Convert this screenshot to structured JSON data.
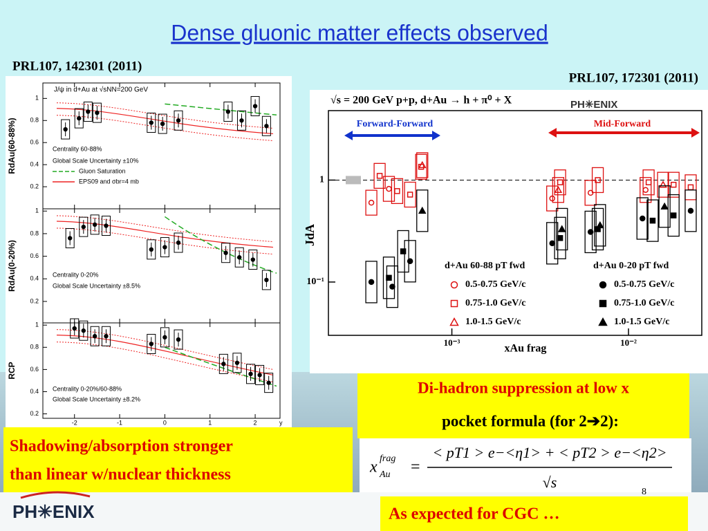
{
  "title": "Dense gluonic matter effects observed",
  "refs": [
    "PRL107, 142301 (2011)",
    "PRL107, 172301 (2011)"
  ],
  "left_figure": {
    "type": "scatter",
    "header": "J/ψ in d+Au at √sNN=200 GeV",
    "xlabel": "y",
    "xlim": [
      -2.7,
      2.55
    ],
    "xticks": [
      -2,
      -1,
      0,
      1,
      2
    ],
    "panels": [
      {
        "ylabel": "RdAu(60-88%)",
        "ylim": [
          0,
          1.14
        ],
        "yticks": [
          0.2,
          0.4,
          0.6,
          0.8,
          1
        ],
        "notes": [
          "Centrality 60-88%",
          "Global Scale Uncertainty ±10%"
        ],
        "legend": [
          {
            "name": "Gluon Saturation",
            "color": "#22aa22"
          },
          {
            "name": "EPS09 and σbr=4 mb",
            "color": "#ee2222"
          }
        ],
        "points": {
          "x": [
            -2.2,
            -1.9,
            -1.7,
            -1.5,
            -0.3,
            -0.05,
            0.3,
            1.4,
            1.7,
            2.0,
            2.25
          ],
          "y": [
            0.72,
            0.82,
            0.88,
            0.87,
            0.78,
            0.77,
            0.8,
            0.88,
            0.8,
            0.93,
            0.75
          ]
        }
      },
      {
        "ylabel": "RdAu(0-20%)",
        "ylim": [
          0.01,
          1.02
        ],
        "yticks": [
          0.2,
          0.4,
          0.6,
          0.8,
          1
        ],
        "notes": [
          "Centrality 0-20%",
          "Global Scale Uncertainty ±8.5%"
        ],
        "points": {
          "x": [
            -2.1,
            -1.8,
            -1.55,
            -1.3,
            -0.3,
            0.0,
            0.3,
            1.35,
            1.65,
            1.95,
            2.25
          ],
          "y": [
            0.76,
            0.86,
            0.88,
            0.87,
            0.66,
            0.68,
            0.72,
            0.63,
            0.59,
            0.57,
            0.39
          ]
        }
      },
      {
        "ylabel": "RCP",
        "ylim": [
          0.16,
          1.02
        ],
        "yticks": [
          0.2,
          0.4,
          0.6,
          0.8,
          1
        ],
        "notes": [
          "Centrality 0-20%/60-88%",
          "Global Scale Uncertainty ±8.2%"
        ],
        "points": {
          "x": [
            -2.0,
            -1.8,
            -1.55,
            -1.3,
            -0.3,
            0.0,
            0.3,
            1.3,
            1.6,
            1.9,
            2.1,
            2.3
          ],
          "y": [
            0.97,
            0.95,
            0.9,
            0.9,
            0.83,
            0.89,
            0.87,
            0.65,
            0.66,
            0.56,
            0.55,
            0.48
          ]
        }
      }
    ]
  },
  "right_figure": {
    "type": "scatter",
    "header": "√s = 200 GeV p+p, d+Au → h + π⁰ + X",
    "logo": "PH✳ENIX",
    "regions": [
      "Forward-Forward",
      "Mid-Forward"
    ],
    "ylabel": "JdA",
    "xlabel": "xAu frag",
    "log_x": true,
    "log_y": true,
    "xlim": [
      0.0002,
      0.026
    ],
    "ylim": [
      0.03,
      4.8
    ],
    "xticks": [
      {
        "value": 0.001,
        "label": "10⁻³"
      },
      {
        "value": 0.01,
        "label": "10⁻²"
      }
    ],
    "yticks": [
      {
        "value": 0.1,
        "label": "10⁻¹"
      },
      1
    ],
    "legend_titles": [
      "d+Au 60-88 pT fwd",
      "d+Au 0-20 pT fwd"
    ],
    "series": [
      {
        "name": "0.5-0.75 GeV/c",
        "color": "#dd1111",
        "marker": "circle",
        "filled": false,
        "x": [
          0.00035,
          0.00044,
          0.0037,
          0.0061,
          0.0125
        ],
        "values": [
          0.6,
          0.82,
          0.66,
          0.75,
          0.8
        ]
      },
      {
        "name": "0.75-1.0 GeV/c",
        "color": "#dd1111",
        "marker": "square",
        "filled": false,
        "x": [
          0.00039,
          0.00049,
          0.00058,
          0.00067,
          0.0041,
          0.0067,
          0.013,
          0.018,
          0.0225
        ],
        "values": [
          1.1,
          0.78,
          0.72,
          1.35,
          0.95,
          1.0,
          0.95,
          0.9,
          0.85
        ]
      },
      {
        "name": "1.0-1.5 GeV/c",
        "color": "#dd1111",
        "marker": "triangle",
        "filled": false,
        "x": [
          0.00068,
          0.004,
          0.0157
        ],
        "values": [
          1.4,
          0.8,
          0.9
        ]
      },
      {
        "name": "0.5-0.75 GeV/c",
        "color": "#000000",
        "marker": "circle",
        "filled": true,
        "x": [
          0.00035,
          0.00046,
          0.00058,
          0.0037,
          0.0061,
          0.012,
          0.0225
        ],
        "values": [
          0.1,
          0.09,
          0.16,
          0.24,
          0.31,
          0.42,
          0.5
        ]
      },
      {
        "name": "0.75-1.0 GeV/c",
        "color": "#000000",
        "marker": "square",
        "filled": true,
        "x": [
          0.00044,
          0.00053,
          0.0041,
          0.0067,
          0.0137,
          0.018
        ],
        "values": [
          0.11,
          0.2,
          0.27,
          0.33,
          0.4,
          0.45
        ]
      },
      {
        "name": "1.0-1.5 GeV/c",
        "color": "#000000",
        "marker": "triangle",
        "filled": true,
        "x": [
          0.00068,
          0.0042,
          0.0069,
          0.016
        ],
        "values": [
          0.5,
          0.33,
          0.36,
          0.55
        ]
      }
    ]
  },
  "callouts": {
    "dihadron": "Di-hadron suppression at low x",
    "pocket": "pocket formula (for 2➔2):",
    "shadowing": [
      "Shadowing/absorption stronger",
      "than linear w/nuclear thickness"
    ],
    "cgc": "As expected for CGC …"
  },
  "formula": {
    "lhs": "x",
    "sup": "frag",
    "sub": "Au",
    "eq": "=",
    "numerator": "< pT1 > e−<η1> + < pT2 > e−<η2>",
    "denominator": "√s"
  },
  "logo": "PH✳ENIX",
  "page": "8"
}
